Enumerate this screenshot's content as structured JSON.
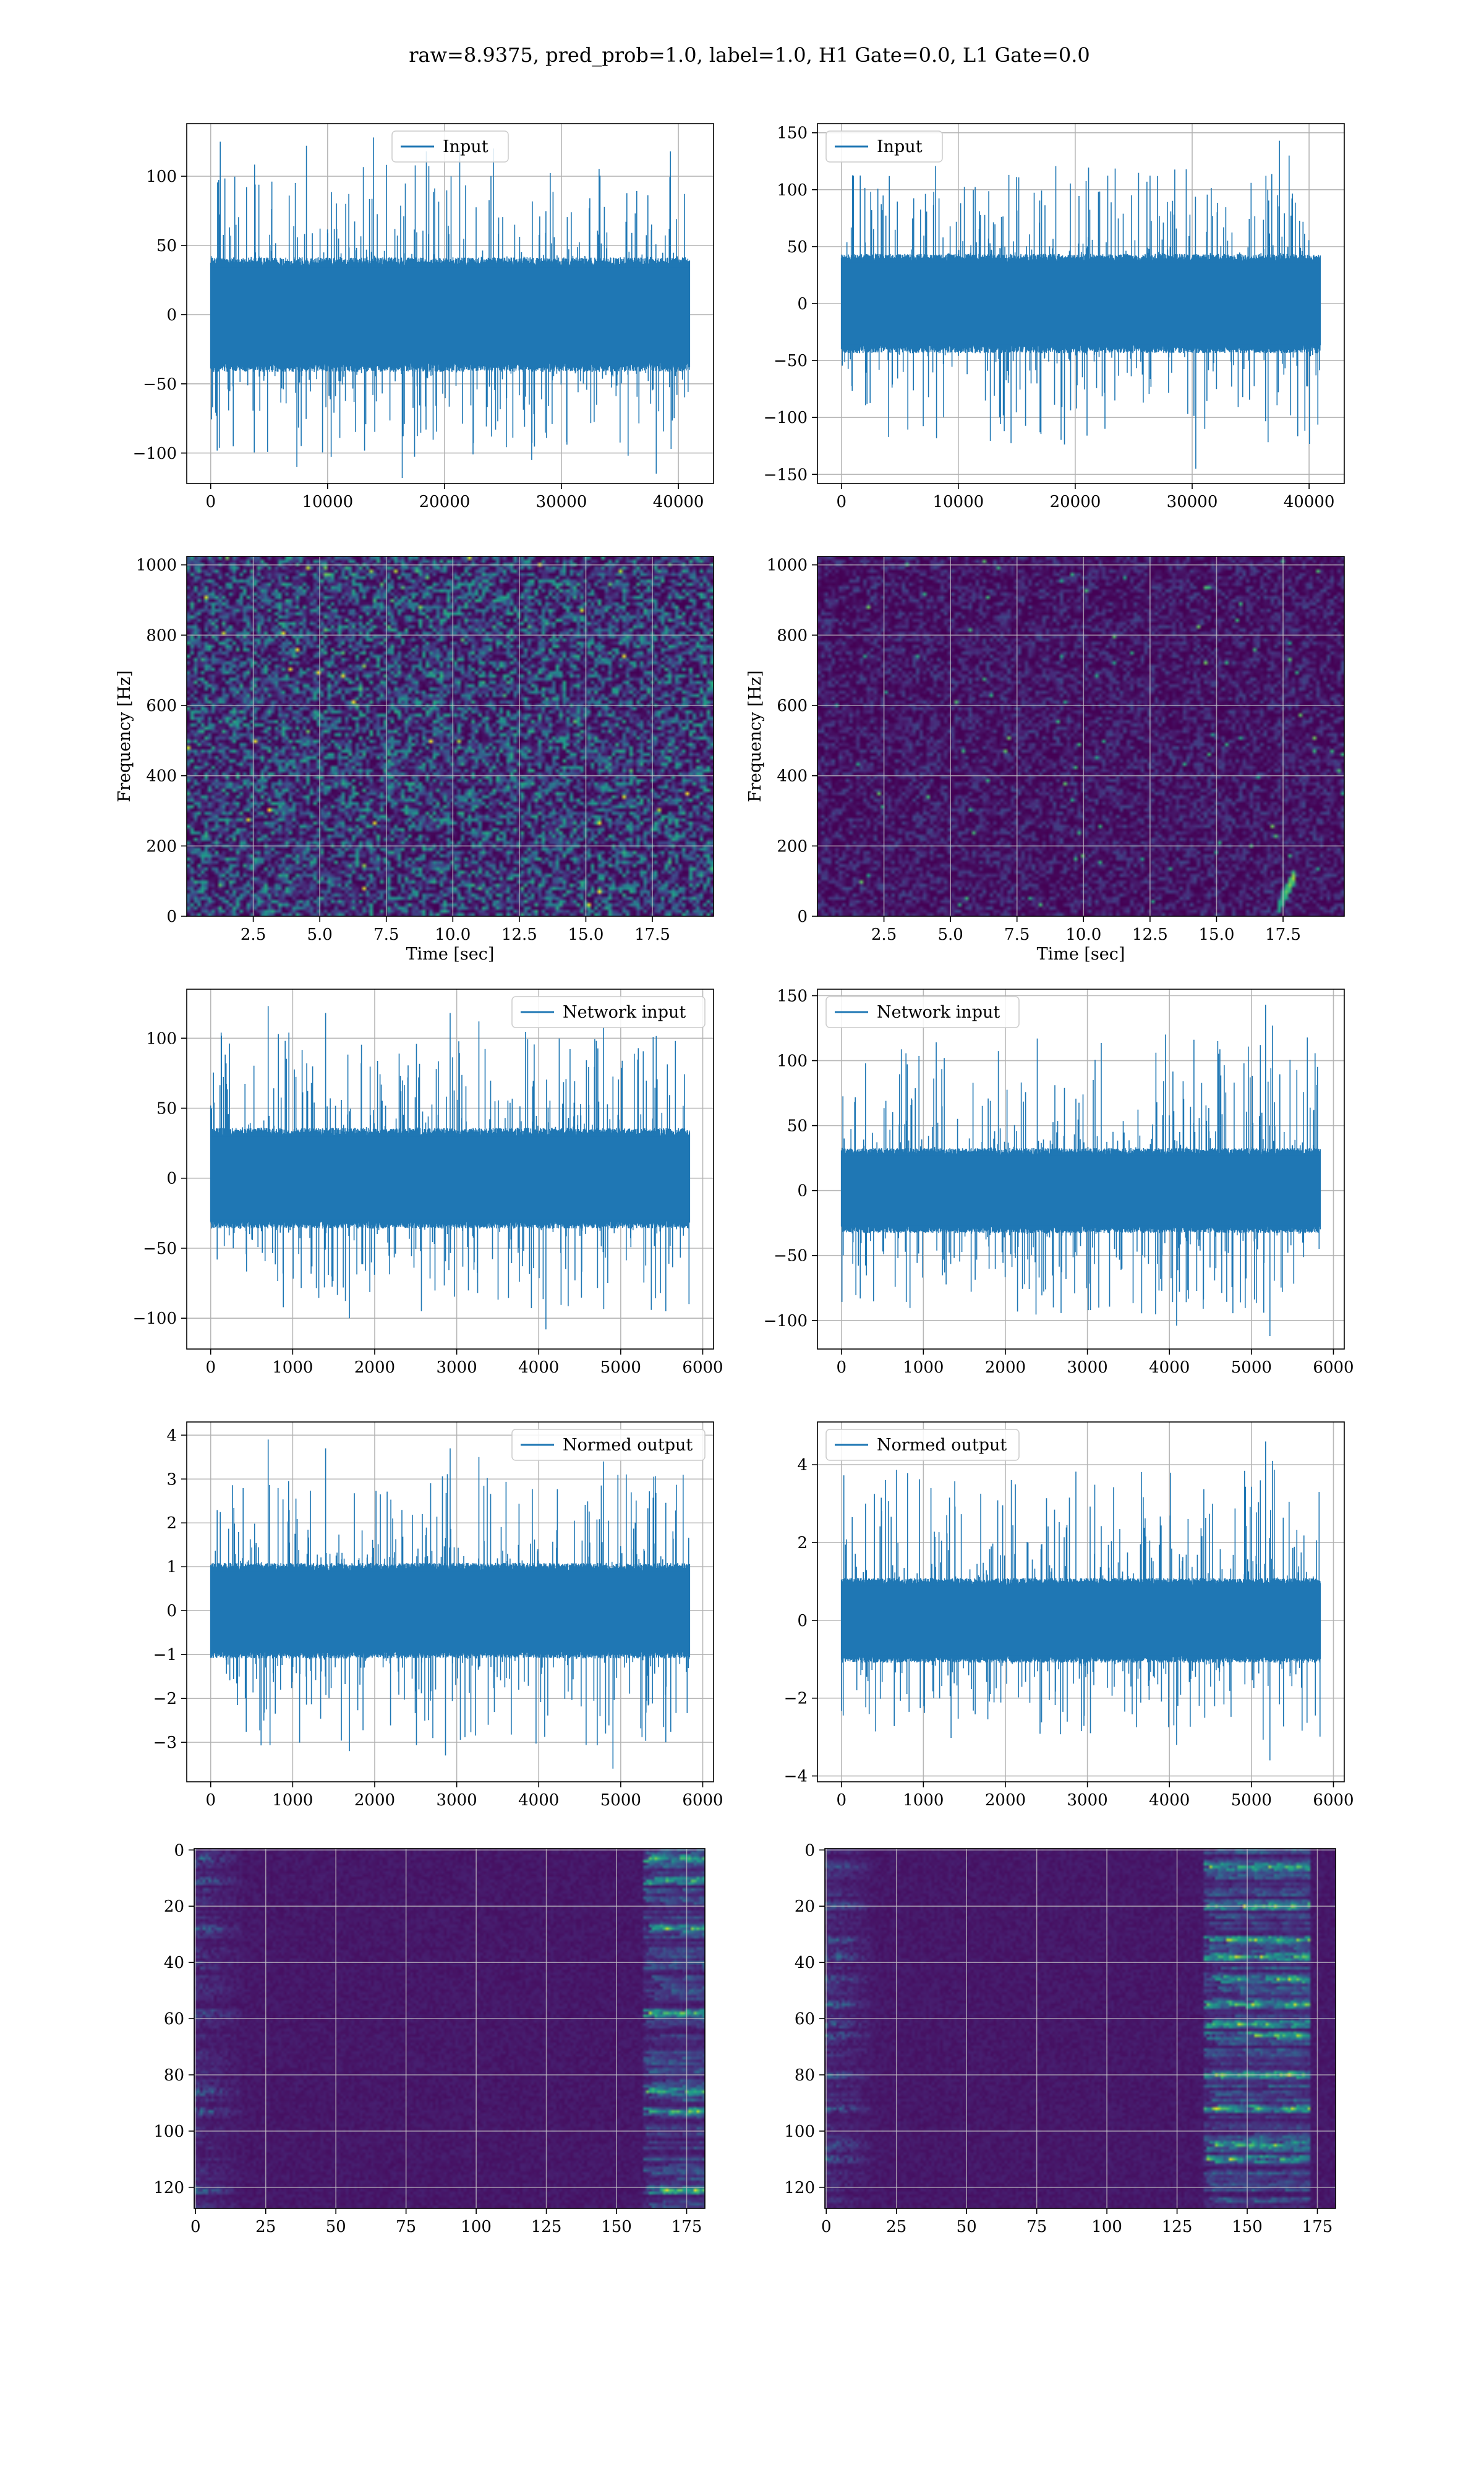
{
  "suptitle": "raw=8.9375, pred_prob=1.0, label=1.0, H1 Gate=0.0, L1 Gate=0.0",
  "colors": {
    "line": "#1f77b4",
    "grid": "#b0b0b0",
    "viridis_low": "#440154",
    "viridis_mid": "#21918c",
    "viridis_high": "#fde725"
  },
  "chart_data": [
    {
      "id": "r0c0",
      "type": "line",
      "legend": "Input",
      "legend_loc": "upper center",
      "xlim": [
        -2048,
        43008
      ],
      "ylim": [
        -122,
        138
      ],
      "xticks": [
        0,
        10000,
        20000,
        30000,
        40000
      ],
      "yticks": [
        -100,
        -50,
        0,
        50,
        100
      ],
      "xticklabels": [
        "0",
        "10000",
        "20000",
        "30000",
        "40000"
      ],
      "yticklabels": [
        "−100",
        "−50",
        "0",
        "50",
        "100"
      ],
      "x_range": [
        0,
        40960
      ],
      "band": [
        -38,
        38
      ],
      "max_peak": 128,
      "min_peak": -120,
      "spikes": [
        [
          0.02,
          125
        ],
        [
          0.2,
          122
        ],
        [
          0.34,
          128
        ],
        [
          0.45,
          118
        ],
        [
          0.52,
          120
        ],
        [
          0.59,
          120
        ],
        [
          0.96,
          118
        ],
        [
          0.4,
          -118
        ],
        [
          0.18,
          -110
        ],
        [
          0.93,
          -115
        ],
        [
          0.67,
          -105
        ]
      ]
    },
    {
      "id": "r0c1",
      "type": "line",
      "legend": "Input",
      "legend_loc": "upper left",
      "xlim": [
        -2048,
        43008
      ],
      "ylim": [
        -158,
        158
      ],
      "xticks": [
        0,
        10000,
        20000,
        30000,
        40000
      ],
      "yticks": [
        -150,
        -100,
        -50,
        0,
        50,
        100,
        150
      ],
      "xticklabels": [
        "0",
        "10000",
        "20000",
        "30000",
        "40000"
      ],
      "yticklabels": [
        "−150",
        "−100",
        "−50",
        "0",
        "50",
        "100",
        "150"
      ],
      "x_range": [
        0,
        40960
      ],
      "band": [
        -40,
        40
      ],
      "max_peak": 143,
      "min_peak": -145,
      "spikes": [
        [
          0.915,
          143
        ],
        [
          0.935,
          130
        ],
        [
          0.72,
          118
        ],
        [
          0.74,
          -145
        ],
        [
          0.34,
          -112
        ],
        [
          0.1,
          112
        ],
        [
          0.66,
          112
        ],
        [
          0.55,
          -110
        ]
      ]
    },
    {
      "id": "r1c0",
      "type": "heatmap",
      "kind": "spectrogram",
      "xlim": [
        0,
        19.8
      ],
      "ylim": [
        0,
        1024
      ],
      "xticks": [
        2.5,
        5.0,
        7.5,
        10.0,
        12.5,
        15.0,
        17.5
      ],
      "yticks": [
        0,
        200,
        400,
        600,
        800,
        1000
      ],
      "xticklabels": [
        "2.5",
        "5.0",
        "7.5",
        "10.0",
        "12.5",
        "15.0",
        "17.5"
      ],
      "yticklabels": [
        "0",
        "200",
        "400",
        "600",
        "800",
        "1000"
      ],
      "xlabel": "Time [sec]",
      "ylabel": "Frequency [Hz]",
      "colormap": "viridis",
      "intensity": 0.38
    },
    {
      "id": "r1c1",
      "type": "heatmap",
      "kind": "spectrogram",
      "xlim": [
        0,
        19.8
      ],
      "ylim": [
        0,
        1024
      ],
      "xticks": [
        2.5,
        5.0,
        7.5,
        10.0,
        12.5,
        15.0,
        17.5
      ],
      "yticks": [
        0,
        200,
        400,
        600,
        800,
        1000
      ],
      "xticklabels": [
        "2.5",
        "5.0",
        "7.5",
        "10.0",
        "12.5",
        "15.0",
        "17.5"
      ],
      "yticklabels": [
        "0",
        "200",
        "400",
        "600",
        "800",
        "1000"
      ],
      "xlabel": "Time [sec]",
      "ylabel": "Frequency [Hz]",
      "colormap": "viridis",
      "intensity": 0.14,
      "chirp": {
        "t_start": 17.3,
        "t_end": 17.95,
        "f_start": 20,
        "f_end": 120
      }
    },
    {
      "id": "r2c0",
      "type": "line",
      "legend": "Network input",
      "legend_loc": "upper right",
      "xlim": [
        -292,
        6132
      ],
      "ylim": [
        -122,
        135
      ],
      "xticks": [
        0,
        1000,
        2000,
        3000,
        4000,
        5000,
        6000
      ],
      "yticks": [
        -100,
        -50,
        0,
        50,
        100
      ],
      "xticklabels": [
        "0",
        "1000",
        "2000",
        "3000",
        "4000",
        "5000",
        "6000"
      ],
      "yticklabels": [
        "−100",
        "−50",
        "0",
        "50",
        "100"
      ],
      "x_range": [
        0,
        5840
      ],
      "band": [
        -33,
        33
      ],
      "max_peak": 123,
      "min_peak": -110,
      "spikes": [
        [
          0.12,
          123
        ],
        [
          0.24,
          118
        ],
        [
          0.5,
          118
        ],
        [
          0.56,
          112
        ],
        [
          0.82,
          108
        ],
        [
          0.7,
          -108
        ],
        [
          0.29,
          -100
        ],
        [
          0.95,
          -95
        ],
        [
          0.44,
          -95
        ]
      ]
    },
    {
      "id": "r2c1",
      "type": "line",
      "legend": "Network input",
      "legend_loc": "upper left",
      "xlim": [
        -292,
        6132
      ],
      "ylim": [
        -122,
        155
      ],
      "xticks": [
        0,
        1000,
        2000,
        3000,
        4000,
        5000,
        6000
      ],
      "yticks": [
        -100,
        -50,
        0,
        50,
        100,
        150
      ],
      "xticklabels": [
        "0",
        "1000",
        "2000",
        "3000",
        "4000",
        "5000",
        "6000"
      ],
      "yticklabels": [
        "−100",
        "−50",
        "0",
        "50",
        "100",
        "150"
      ],
      "x_range": [
        0,
        5840
      ],
      "band": [
        -30,
        30
      ],
      "max_peak": 143,
      "min_peak": -112,
      "spikes": [
        [
          0.886,
          143
        ],
        [
          0.9,
          127
        ],
        [
          0.875,
          112
        ],
        [
          0.895,
          -112
        ],
        [
          0.7,
          -104
        ],
        [
          0.05,
          98
        ],
        [
          0.52,
          -92
        ]
      ]
    },
    {
      "id": "r3c0",
      "type": "line",
      "legend": "Normed output",
      "legend_loc": "upper right",
      "xlim": [
        -292,
        6132
      ],
      "ylim": [
        -3.9,
        4.3
      ],
      "xticks": [
        0,
        1000,
        2000,
        3000,
        4000,
        5000,
        6000
      ],
      "yticks": [
        -3,
        -2,
        -1,
        0,
        1,
        2,
        3,
        4
      ],
      "xticklabels": [
        "0",
        "1000",
        "2000",
        "3000",
        "4000",
        "5000",
        "6000"
      ],
      "yticklabels": [
        "−3",
        "−2",
        "−1",
        "0",
        "1",
        "2",
        "3",
        "4"
      ],
      "x_range": [
        0,
        5840
      ],
      "band": [
        -1.0,
        1.0
      ],
      "max_peak": 3.9,
      "min_peak": -3.6,
      "spikes": [
        [
          0.12,
          3.9
        ],
        [
          0.24,
          3.7
        ],
        [
          0.5,
          3.7
        ],
        [
          0.56,
          3.5
        ],
        [
          0.82,
          3.4
        ],
        [
          0.84,
          -3.6
        ],
        [
          0.29,
          -3.2
        ],
        [
          0.49,
          -3.3
        ],
        [
          0.95,
          -3.0
        ]
      ]
    },
    {
      "id": "r3c1",
      "type": "line",
      "legend": "Normed output",
      "legend_loc": "upper left",
      "xlim": [
        -292,
        6132
      ],
      "ylim": [
        -4.15,
        5.1
      ],
      "xticks": [
        0,
        1000,
        2000,
        3000,
        4000,
        5000,
        6000
      ],
      "yticks": [
        -4,
        -2,
        0,
        2,
        4
      ],
      "xticklabels": [
        "0",
        "1000",
        "2000",
        "3000",
        "4000",
        "5000",
        "6000"
      ],
      "yticklabels": [
        "−4",
        "−2",
        "0",
        "2",
        "4"
      ],
      "x_range": [
        0,
        5840
      ],
      "band": [
        -1.0,
        1.0
      ],
      "max_peak": 4.6,
      "min_peak": -3.6,
      "spikes": [
        [
          0.886,
          4.6
        ],
        [
          0.9,
          4.1
        ],
        [
          0.875,
          3.6
        ],
        [
          0.895,
          -3.6
        ],
        [
          0.7,
          -3.2
        ],
        [
          0.05,
          3.0
        ],
        [
          0.52,
          -2.9
        ]
      ]
    },
    {
      "id": "r4c0",
      "type": "heatmap",
      "kind": "feature-map",
      "xlim": [
        -0.5,
        181.5
      ],
      "ylim": [
        127.5,
        -0.5
      ],
      "xticks": [
        0,
        25,
        50,
        75,
        100,
        125,
        150,
        175
      ],
      "yticks": [
        0,
        20,
        40,
        60,
        80,
        100,
        120
      ],
      "xticklabels": [
        "0",
        "25",
        "50",
        "75",
        "100",
        "125",
        "150",
        "175"
      ],
      "yticklabels": [
        "0",
        "20",
        "40",
        "60",
        "80",
        "100",
        "120"
      ],
      "colormap": "viridis",
      "hot_columns": [
        160,
        181
      ],
      "hot_rows": [
        3,
        11,
        28,
        58,
        86,
        93,
        121
      ]
    },
    {
      "id": "r4c1",
      "type": "heatmap",
      "kind": "feature-map",
      "xlim": [
        -0.5,
        181.5
      ],
      "ylim": [
        127.5,
        -0.5
      ],
      "xticks": [
        0,
        25,
        50,
        75,
        100,
        125,
        150,
        175
      ],
      "yticks": [
        0,
        20,
        40,
        60,
        80,
        100,
        120
      ],
      "xticklabels": [
        "0",
        "25",
        "50",
        "75",
        "100",
        "125",
        "150",
        "175"
      ],
      "yticklabels": [
        "0",
        "20",
        "40",
        "60",
        "80",
        "100",
        "120"
      ],
      "colormap": "viridis",
      "hot_columns": [
        135,
        172
      ],
      "hot_rows": [
        6,
        20,
        32,
        38,
        46,
        55,
        62,
        66,
        80,
        92,
        105,
        110
      ]
    }
  ]
}
